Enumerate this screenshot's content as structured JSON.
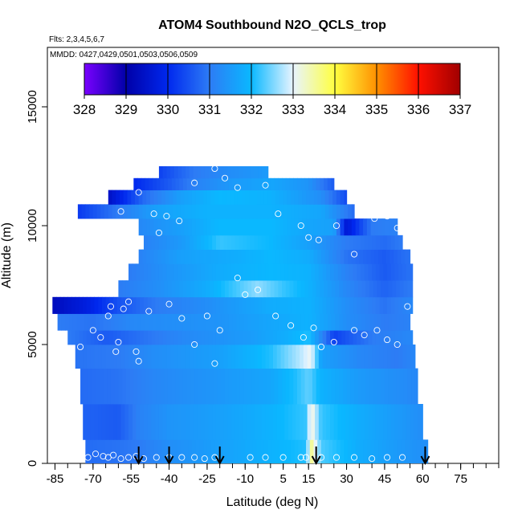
{
  "chart_data": {
    "type": "heatmap",
    "title": "ATOM4 Southbound N2O_QCLS_trop",
    "subtitle_flights": "Flts: 2,3,4,5,6,7",
    "subtitle_dates": "MMDD: 0427,0429,0501,0503,0506,0509",
    "xlabel": "Latitude (deg N)",
    "ylabel": "Altitude (m)",
    "xlim": [
      -88,
      90
    ],
    "ylim": [
      0,
      17500
    ],
    "x_ticks": [
      -85,
      -70,
      -55,
      -40,
      -25,
      -10,
      5,
      15,
      30,
      45,
      60,
      75
    ],
    "x_tick_labels": [
      "-85",
      "-70",
      "-55",
      "-40",
      "-25",
      "-10",
      "5",
      "15",
      "30",
      "45",
      "60",
      "75"
    ],
    "y_ticks": [
      0,
      5000,
      10000,
      15000
    ],
    "y_tick_labels": [
      "0",
      "5000",
      "10000",
      "15000"
    ],
    "colorbar": {
      "min": 328,
      "max": 337,
      "tick_values": [
        328,
        329,
        330,
        331,
        332,
        333,
        334,
        335,
        336,
        337
      ],
      "tick_labels": [
        "328",
        "329",
        "330",
        "331",
        "332",
        "333",
        "334",
        "335",
        "336",
        "337"
      ],
      "colors": [
        "#7a00ff",
        "#0000a8",
        "#0028ee",
        "#2d7cf5",
        "#0ab8ff",
        "#e8f4ff",
        "#ffff40",
        "#ff9000",
        "#ff1000",
        "#a00000"
      ]
    },
    "profile_arrow_latitudes": [
      -52,
      -40,
      -20,
      18,
      61
    ],
    "layers": [
      {
        "alt": [
          0,
          1000
        ],
        "lat": [
          -73,
          62
        ],
        "values": [
          [
            -73,
            330.8
          ],
          [
            -60,
            330.9
          ],
          [
            -52,
            331.0
          ],
          [
            -40,
            331.3
          ],
          [
            -20,
            331.6
          ],
          [
            0,
            331.9
          ],
          [
            14,
            332.1
          ],
          [
            16,
            333.6
          ],
          [
            20,
            332.3
          ],
          [
            35,
            331.8
          ],
          [
            50,
            331.5
          ],
          [
            62,
            331.3
          ]
        ]
      },
      {
        "alt": [
          1000,
          2500
        ],
        "lat": [
          -74,
          60
        ],
        "values": [
          [
            -74,
            330.7
          ],
          [
            -60,
            330.6
          ],
          [
            -52,
            331.1
          ],
          [
            -40,
            331.4
          ],
          [
            -20,
            331.6
          ],
          [
            0,
            331.9
          ],
          [
            14,
            332.2
          ],
          [
            16,
            333.3
          ],
          [
            20,
            332.2
          ],
          [
            35,
            331.8
          ],
          [
            50,
            331.5
          ],
          [
            60,
            331.3
          ]
        ]
      },
      {
        "alt": [
          2500,
          4000
        ],
        "lat": [
          -75,
          58
        ],
        "values": [
          [
            -75,
            330.8
          ],
          [
            -60,
            330.9
          ],
          [
            -45,
            331.2
          ],
          [
            -25,
            331.4
          ],
          [
            0,
            331.7
          ],
          [
            10,
            332.1
          ],
          [
            15,
            332.4
          ],
          [
            20,
            331.9
          ],
          [
            35,
            331.5
          ],
          [
            50,
            331.3
          ],
          [
            58,
            331.2
          ]
        ]
      },
      {
        "alt": [
          4000,
          5000
        ],
        "lat": [
          -77,
          57
        ],
        "values": [
          [
            -77,
            330.9
          ],
          [
            -60,
            331.0
          ],
          [
            -45,
            331.3
          ],
          [
            -20,
            331.6
          ],
          [
            0,
            332.1
          ],
          [
            12,
            332.8
          ],
          [
            16,
            333.1
          ],
          [
            20,
            331.6
          ],
          [
            35,
            331.2
          ],
          [
            50,
            331.0
          ],
          [
            57,
            331.2
          ]
        ]
      },
      {
        "alt": [
          5000,
          5600
        ],
        "lat": [
          -80,
          56
        ],
        "values": [
          [
            -80,
            331.0
          ],
          [
            -65,
            330.6
          ],
          [
            -50,
            330.9
          ],
          [
            -35,
            331.2
          ],
          [
            -10,
            331.5
          ],
          [
            5,
            331.8
          ],
          [
            15,
            332.1
          ],
          [
            25,
            330.3
          ],
          [
            40,
            331.0
          ],
          [
            56,
            331.2
          ]
        ]
      },
      {
        "alt": [
          5600,
          6300
        ],
        "lat": [
          -84,
          55
        ],
        "values": [
          [
            -84,
            331.0
          ],
          [
            -70,
            330.9
          ],
          [
            -55,
            331.2
          ],
          [
            -40,
            331.3
          ],
          [
            -20,
            331.4
          ],
          [
            0,
            331.7
          ],
          [
            15,
            331.9
          ],
          [
            30,
            331.3
          ],
          [
            45,
            331.0
          ],
          [
            55,
            331.1
          ]
        ]
      },
      {
        "alt": [
          6300,
          7000
        ],
        "lat": [
          -86,
          56
        ],
        "values": [
          [
            -86,
            329.3
          ],
          [
            -72,
            329.8
          ],
          [
            -60,
            330.5
          ],
          [
            -45,
            331.0
          ],
          [
            -25,
            331.3
          ],
          [
            0,
            331.8
          ],
          [
            15,
            331.9
          ],
          [
            30,
            331.3
          ],
          [
            45,
            330.9
          ],
          [
            56,
            331.2
          ]
        ]
      },
      {
        "alt": [
          7000,
          7700
        ],
        "lat": [
          -60,
          56
        ],
        "values": [
          [
            -60,
            331.0
          ],
          [
            -45,
            331.3
          ],
          [
            -25,
            331.8
          ],
          [
            -5,
            332.6
          ],
          [
            5,
            332.2
          ],
          [
            15,
            331.9
          ],
          [
            30,
            331.2
          ],
          [
            45,
            330.7
          ],
          [
            56,
            331.0
          ]
        ]
      },
      {
        "alt": [
          7700,
          8400
        ],
        "lat": [
          -56,
          56
        ],
        "values": [
          [
            -56,
            331.0
          ],
          [
            -40,
            331.4
          ],
          [
            -20,
            331.8
          ],
          [
            0,
            332.0
          ],
          [
            15,
            331.9
          ],
          [
            30,
            331.1
          ],
          [
            45,
            330.6
          ],
          [
            56,
            330.9
          ]
        ]
      },
      {
        "alt": [
          8400,
          9000
        ],
        "lat": [
          -52,
          55
        ],
        "values": [
          [
            -52,
            331.1
          ],
          [
            -35,
            331.6
          ],
          [
            -15,
            331.8
          ],
          [
            0,
            332.0
          ],
          [
            15,
            331.8
          ],
          [
            30,
            330.9
          ],
          [
            45,
            330.6
          ],
          [
            55,
            330.9
          ]
        ]
      },
      {
        "alt": [
          9000,
          9600
        ],
        "lat": [
          -50,
          52
        ],
        "values": [
          [
            -50,
            331.1
          ],
          [
            -35,
            331.5
          ],
          [
            -20,
            332.2
          ],
          [
            0,
            332.0
          ],
          [
            15,
            331.6
          ],
          [
            30,
            331.0
          ],
          [
            45,
            330.8
          ],
          [
            52,
            331.0
          ]
        ]
      },
      {
        "alt": [
          9600,
          10300
        ],
        "lat": [
          -52,
          50
        ],
        "values": [
          [
            -52,
            331.2
          ],
          [
            -35,
            331.6
          ],
          [
            -20,
            332.0
          ],
          [
            0,
            332.0
          ],
          [
            15,
            331.7
          ],
          [
            25,
            331.6
          ],
          [
            30,
            329.6
          ],
          [
            40,
            331.0
          ],
          [
            50,
            331.1
          ]
        ]
      },
      {
        "alt": [
          10300,
          10900
        ],
        "lat": [
          -76,
          33
        ],
        "values": [
          [
            -76,
            330.2
          ],
          [
            -60,
            331.0
          ],
          [
            -45,
            331.6
          ],
          [
            -25,
            331.9
          ],
          [
            0,
            331.9
          ],
          [
            20,
            331.7
          ],
          [
            33,
            330.8
          ]
        ]
      },
      {
        "alt": [
          10900,
          11500
        ],
        "lat": [
          -64,
          30
        ],
        "values": [
          [
            -64,
            329.4
          ],
          [
            -50,
            330.8
          ],
          [
            -35,
            331.6
          ],
          [
            -20,
            332.0
          ],
          [
            0,
            331.9
          ],
          [
            20,
            331.3
          ],
          [
            30,
            330.4
          ]
        ]
      },
      {
        "alt": [
          11500,
          12000
        ],
        "lat": [
          -54,
          25
        ],
        "values": [
          [
            -54,
            330.0
          ],
          [
            -40,
            330.6
          ],
          [
            -30,
            331.1
          ],
          [
            -15,
            331.5
          ],
          [
            0,
            331.7
          ],
          [
            15,
            331.4
          ],
          [
            25,
            330.6
          ]
        ]
      },
      {
        "alt": [
          12000,
          12500
        ],
        "lat": [
          -44,
          -1
        ],
        "values": [
          [
            -44,
            330.3
          ],
          [
            -30,
            331.0
          ],
          [
            -15,
            331.3
          ],
          [
            -1,
            331.5
          ]
        ]
      }
    ],
    "observation_points": [
      [
        -72,
        250
      ],
      [
        -69,
        400
      ],
      [
        -66,
        300
      ],
      [
        -64,
        250
      ],
      [
        -62,
        350
      ],
      [
        -59,
        200
      ],
      [
        -56,
        250
      ],
      [
        -53,
        300
      ],
      [
        -50,
        200
      ],
      [
        -45,
        250
      ],
      [
        -40,
        250
      ],
      [
        -35,
        250
      ],
      [
        -30,
        250
      ],
      [
        -26,
        200
      ],
      [
        -22,
        250
      ],
      [
        -8,
        250
      ],
      [
        -2,
        250
      ],
      [
        5,
        250
      ],
      [
        12,
        250
      ],
      [
        14,
        250
      ],
      [
        20,
        250
      ],
      [
        26,
        250
      ],
      [
        33,
        250
      ],
      [
        40,
        200
      ],
      [
        46,
        250
      ],
      [
        52,
        250
      ],
      [
        -75,
        4900
      ],
      [
        -70,
        5600
      ],
      [
        -67,
        5300
      ],
      [
        -64,
        6200
      ],
      [
        -63,
        6600
      ],
      [
        -61,
        4700
      ],
      [
        -60,
        5100
      ],
      [
        -58,
        6500
      ],
      [
        -56,
        6800
      ],
      [
        -53,
        4700
      ],
      [
        -52,
        4300
      ],
      [
        -48,
        6400
      ],
      [
        -40,
        6700
      ],
      [
        -35,
        6100
      ],
      [
        -30,
        5000
      ],
      [
        -25,
        6200
      ],
      [
        -20,
        5600
      ],
      [
        -22,
        4200
      ],
      [
        -13,
        7800
      ],
      [
        -10,
        7100
      ],
      [
        -5,
        7300
      ],
      [
        2,
        6200
      ],
      [
        8,
        5800
      ],
      [
        13,
        5300
      ],
      [
        17,
        5700
      ],
      [
        20,
        4900
      ],
      [
        25,
        5100
      ],
      [
        33,
        5600
      ],
      [
        37,
        5400
      ],
      [
        42,
        5600
      ],
      [
        46,
        5200
      ],
      [
        50,
        5000
      ],
      [
        54,
        6600
      ],
      [
        -59,
        10600
      ],
      [
        -57,
        9300
      ],
      [
        -56,
        8700
      ],
      [
        -52,
        11400
      ],
      [
        -46,
        10500
      ],
      [
        -44,
        9700
      ],
      [
        -41,
        10400
      ],
      [
        -36,
        10200
      ],
      [
        -30,
        11800
      ],
      [
        -22,
        12400
      ],
      [
        -18,
        12000
      ],
      [
        -13,
        11600
      ],
      [
        -2,
        11700
      ],
      [
        3,
        10500
      ],
      [
        12,
        10000
      ],
      [
        15,
        9500
      ],
      [
        19,
        9400
      ],
      [
        26,
        10000
      ],
      [
        33,
        8800
      ],
      [
        41,
        10300
      ],
      [
        46,
        10400
      ],
      [
        50,
        9900
      ]
    ]
  }
}
